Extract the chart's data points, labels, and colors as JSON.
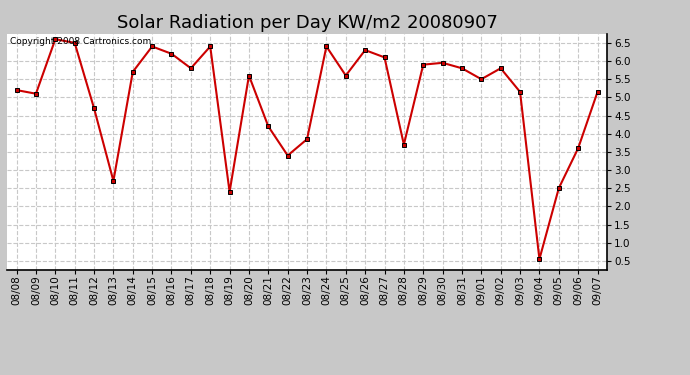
{
  "title": "Solar Radiation per Day KW/m2 20080907",
  "copyright_text": "Copyright 2008 Cartronics.com",
  "dates": [
    "08/08",
    "08/09",
    "08/10",
    "08/11",
    "08/12",
    "08/13",
    "08/14",
    "08/15",
    "08/16",
    "08/17",
    "08/18",
    "08/19",
    "08/20",
    "08/21",
    "08/22",
    "08/23",
    "08/24",
    "08/25",
    "08/26",
    "08/27",
    "08/28",
    "08/29",
    "08/30",
    "08/31",
    "09/01",
    "09/02",
    "09/03",
    "09/04",
    "09/05",
    "09/06",
    "09/07"
  ],
  "values": [
    5.2,
    5.1,
    6.6,
    6.5,
    4.7,
    2.7,
    5.7,
    6.4,
    6.2,
    5.8,
    6.4,
    2.4,
    5.6,
    4.2,
    3.4,
    3.85,
    6.4,
    5.6,
    6.3,
    6.1,
    3.7,
    5.9,
    5.95,
    5.8,
    5.5,
    5.8,
    5.15,
    0.55,
    2.5,
    3.6,
    5.15
  ],
  "line_color": "#cc0000",
  "background_color": "#ffffff",
  "outer_background": "#c8c8c8",
  "grid_color": "#c8c8c8",
  "ylim": [
    0.25,
    6.75
  ],
  "yticks": [
    0.5,
    1.0,
    1.5,
    2.0,
    2.5,
    3.0,
    3.5,
    4.0,
    4.5,
    5.0,
    5.5,
    6.0,
    6.5
  ],
  "title_fontsize": 13,
  "tick_fontsize": 7.5,
  "copyright_fontsize": 6.5
}
